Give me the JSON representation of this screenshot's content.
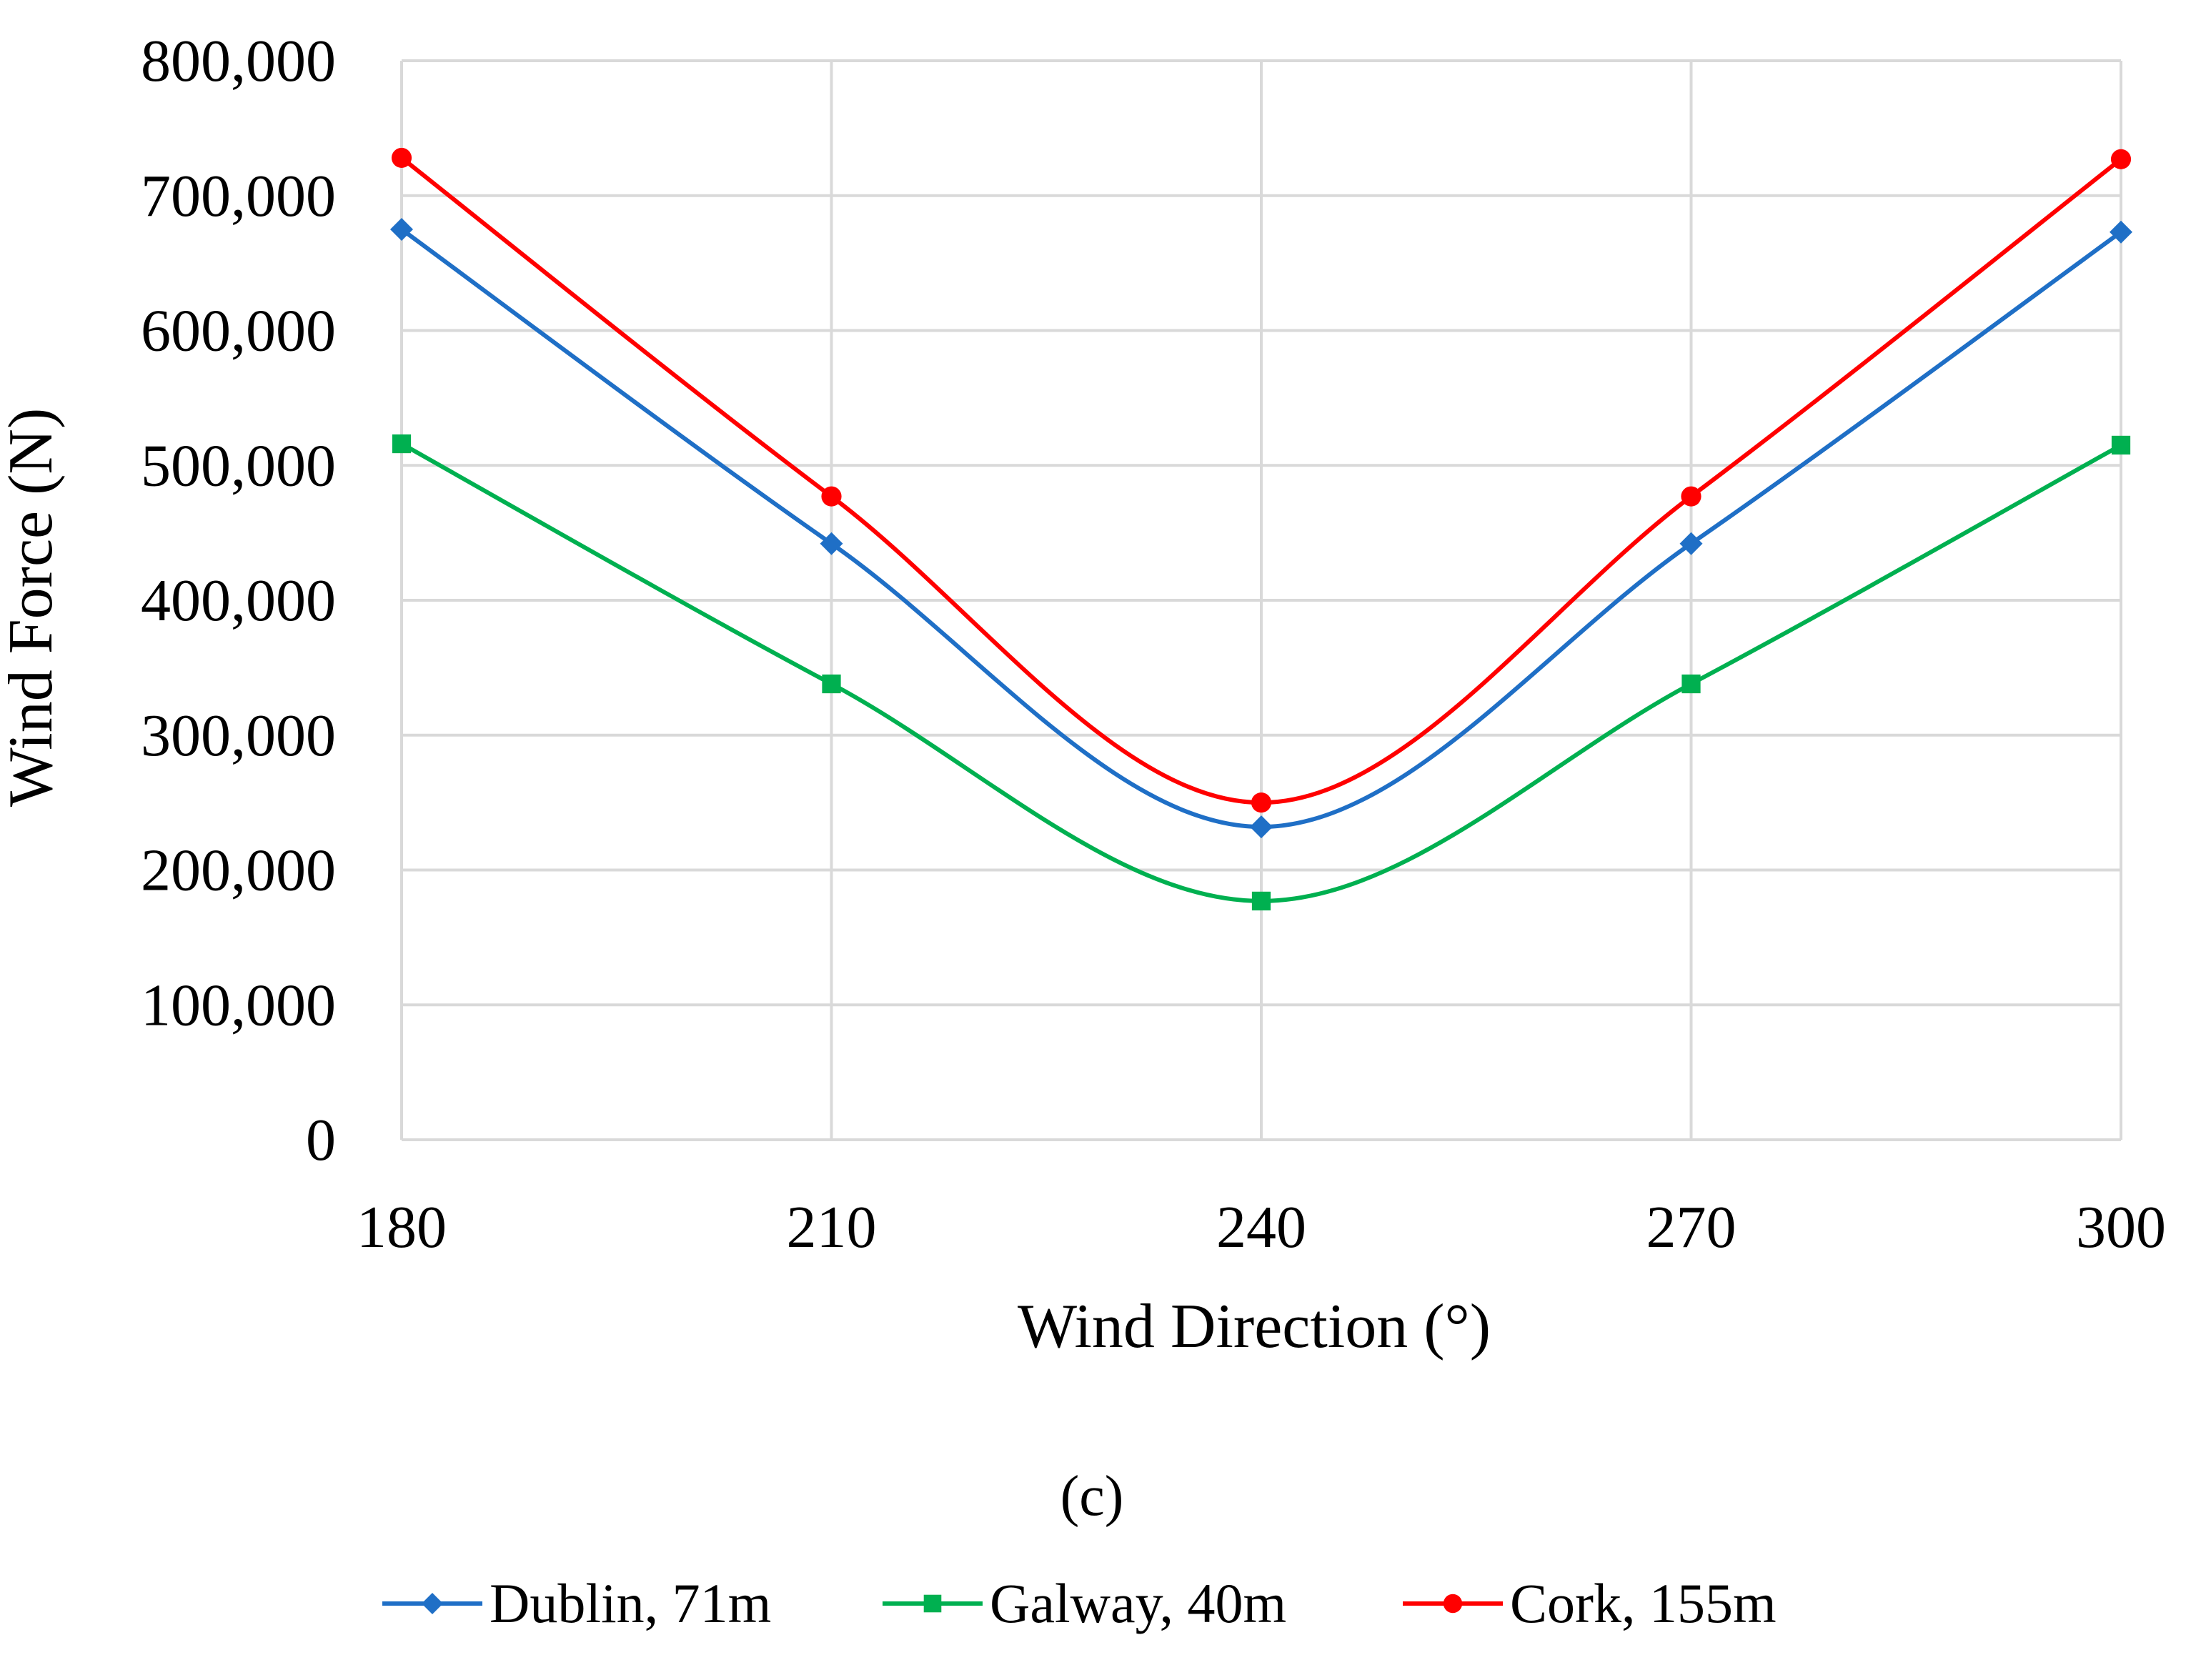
{
  "chart_data": {
    "type": "line",
    "title": "",
    "xlabel": "Wind Direction (°)",
    "ylabel": "Wind Force (N)",
    "panel_label": "(c)",
    "x": [
      180,
      210,
      240,
      270,
      300
    ],
    "x_tick_labels": [
      "180",
      "210",
      "240",
      "270",
      "300"
    ],
    "y_tick_labels": [
      "0",
      "100,000",
      "200,000",
      "300,000",
      "400,000",
      "500,000",
      "600,000",
      "700,000",
      "800,000"
    ],
    "xlim": [
      180,
      300
    ],
    "ylim": [
      0,
      800000
    ],
    "y_step": 100000,
    "grid": true,
    "smooth": true,
    "legend_position": "bottom",
    "series": [
      {
        "name": "Dublin, 71m",
        "color": "#1f6fc6",
        "marker": "diamond",
        "values": [
          675000,
          442000,
          232000,
          442000,
          673000
        ]
      },
      {
        "name": "Galway, 40m",
        "color": "#00b050",
        "marker": "square",
        "values": [
          516000,
          338000,
          177000,
          338000,
          515000
        ]
      },
      {
        "name": "Cork, 155m",
        "color": "#ff0000",
        "marker": "circle",
        "values": [
          728000,
          477000,
          250000,
          477000,
          727000
        ]
      }
    ]
  }
}
